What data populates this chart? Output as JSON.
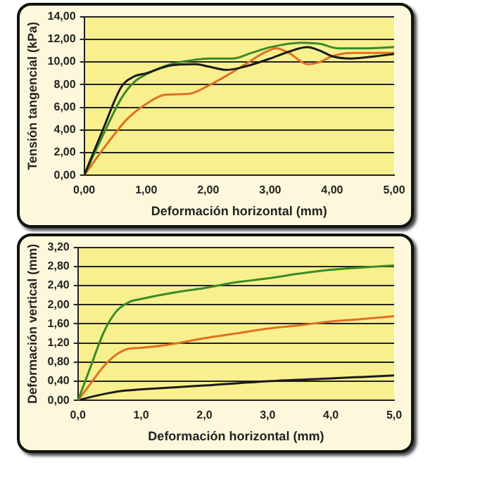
{
  "chart_data": [
    {
      "type": "line",
      "xlabel": "Deformación horizontal (mm)",
      "ylabel": "Tensión tangencial (kPa)",
      "xlim": [
        0,
        5
      ],
      "xticks": [
        {
          "value": 0,
          "label": "0,00"
        },
        {
          "value": 1,
          "label": "1,00"
        },
        {
          "value": 2,
          "label": "2,00"
        },
        {
          "value": 3,
          "label": "3,00"
        },
        {
          "value": 4,
          "label": "4,00"
        },
        {
          "value": 5,
          "label": "5,00"
        }
      ],
      "ylim": [
        0,
        14
      ],
      "yticks": [
        {
          "value": 0,
          "label": "0,00"
        },
        {
          "value": 2,
          "label": "2,00"
        },
        {
          "value": 4,
          "label": "4,00"
        },
        {
          "value": 6,
          "label": "6,00"
        },
        {
          "value": 8,
          "label": "8,00"
        },
        {
          "value": 10,
          "label": "10,00"
        },
        {
          "value": 12,
          "label": "12,00"
        },
        {
          "value": 14,
          "label": "14,00"
        }
      ],
      "grid": "y",
      "legend": false,
      "marker": "none",
      "line_style": "solid",
      "series": [
        {
          "color": "#1a1a1a",
          "x": [
            0,
            0.3,
            0.6,
            0.8,
            1.0,
            1.4,
            1.8,
            2.0,
            2.3,
            2.6,
            3.0,
            3.3,
            3.6,
            3.8,
            4.0,
            4.3,
            4.7,
            5.0
          ],
          "values": [
            0,
            4,
            7.8,
            8.7,
            9.0,
            9.7,
            9.8,
            9.6,
            9.3,
            9.6,
            10.3,
            10.9,
            11.3,
            11.0,
            10.5,
            10.3,
            10.5,
            10.7
          ]
        },
        {
          "color": "#3a8a2a",
          "x": [
            0,
            0.3,
            0.6,
            0.8,
            1.0,
            1.4,
            1.8,
            2.0,
            2.4,
            2.7,
            3.0,
            3.5,
            3.8,
            4.1,
            4.5,
            5.0
          ],
          "values": [
            0,
            3.5,
            6.8,
            8.2,
            8.9,
            9.8,
            10.2,
            10.3,
            10.3,
            10.8,
            11.3,
            11.7,
            11.6,
            11.2,
            11.2,
            11.3
          ]
        },
        {
          "color": "#e07020",
          "x": [
            0,
            0.4,
            0.7,
            1.0,
            1.3,
            1.7,
            2.0,
            2.3,
            2.6,
            2.9,
            3.1,
            3.3,
            3.6,
            3.8,
            4.0,
            4.3,
            5.0
          ],
          "values": [
            0,
            3.0,
            5.0,
            6.3,
            7.1,
            7.2,
            7.9,
            8.8,
            9.8,
            10.8,
            11.2,
            10.8,
            9.8,
            10.0,
            10.5,
            10.8,
            10.8
          ]
        }
      ]
    },
    {
      "type": "line",
      "xlabel": "Deformación horizontal (mm)",
      "ylabel": "Deformación vertical (mm)",
      "xlim": [
        0,
        5
      ],
      "xticks": [
        {
          "value": 0,
          "label": "0,0"
        },
        {
          "value": 1,
          "label": "1,0"
        },
        {
          "value": 2,
          "label": "2,0"
        },
        {
          "value": 3,
          "label": "3,0"
        },
        {
          "value": 4,
          "label": "4,0"
        },
        {
          "value": 5,
          "label": "5,0"
        }
      ],
      "ylim": [
        0,
        3.2
      ],
      "yticks": [
        {
          "value": 0,
          "label": "0,00"
        },
        {
          "value": 0.4,
          "label": "0,40"
        },
        {
          "value": 0.8,
          "label": "0,80"
        },
        {
          "value": 1.2,
          "label": "1,20"
        },
        {
          "value": 1.6,
          "label": "1,60"
        },
        {
          "value": 2.0,
          "label": "2,00"
        },
        {
          "value": 2.4,
          "label": "2,40"
        },
        {
          "value": 2.8,
          "label": "2,80"
        },
        {
          "value": 3.2,
          "label": "3,20"
        }
      ],
      "grid": "y",
      "legend": false,
      "marker": "none",
      "line_style": "solid",
      "series": [
        {
          "color": "#3a8a2a",
          "x": [
            0,
            0.2,
            0.4,
            0.6,
            0.8,
            1.0,
            1.5,
            2.0,
            2.5,
            3.0,
            3.5,
            4.0,
            4.5,
            5.0
          ],
          "values": [
            0,
            0.7,
            1.4,
            1.85,
            2.05,
            2.12,
            2.25,
            2.35,
            2.47,
            2.55,
            2.65,
            2.73,
            2.78,
            2.82
          ]
        },
        {
          "color": "#e07020",
          "x": [
            0,
            0.2,
            0.4,
            0.6,
            0.8,
            1.0,
            1.5,
            2.0,
            2.5,
            3.0,
            3.5,
            4.0,
            4.5,
            5.0
          ],
          "values": [
            0,
            0.35,
            0.7,
            0.95,
            1.08,
            1.1,
            1.18,
            1.3,
            1.4,
            1.5,
            1.57,
            1.65,
            1.7,
            1.76
          ]
        },
        {
          "color": "#1a1a1a",
          "x": [
            0,
            0.3,
            0.6,
            0.8,
            1.0,
            2.0,
            3.0,
            4.0,
            5.0
          ],
          "values": [
            0,
            0.1,
            0.18,
            0.21,
            0.23,
            0.31,
            0.4,
            0.46,
            0.52
          ]
        }
      ]
    }
  ]
}
